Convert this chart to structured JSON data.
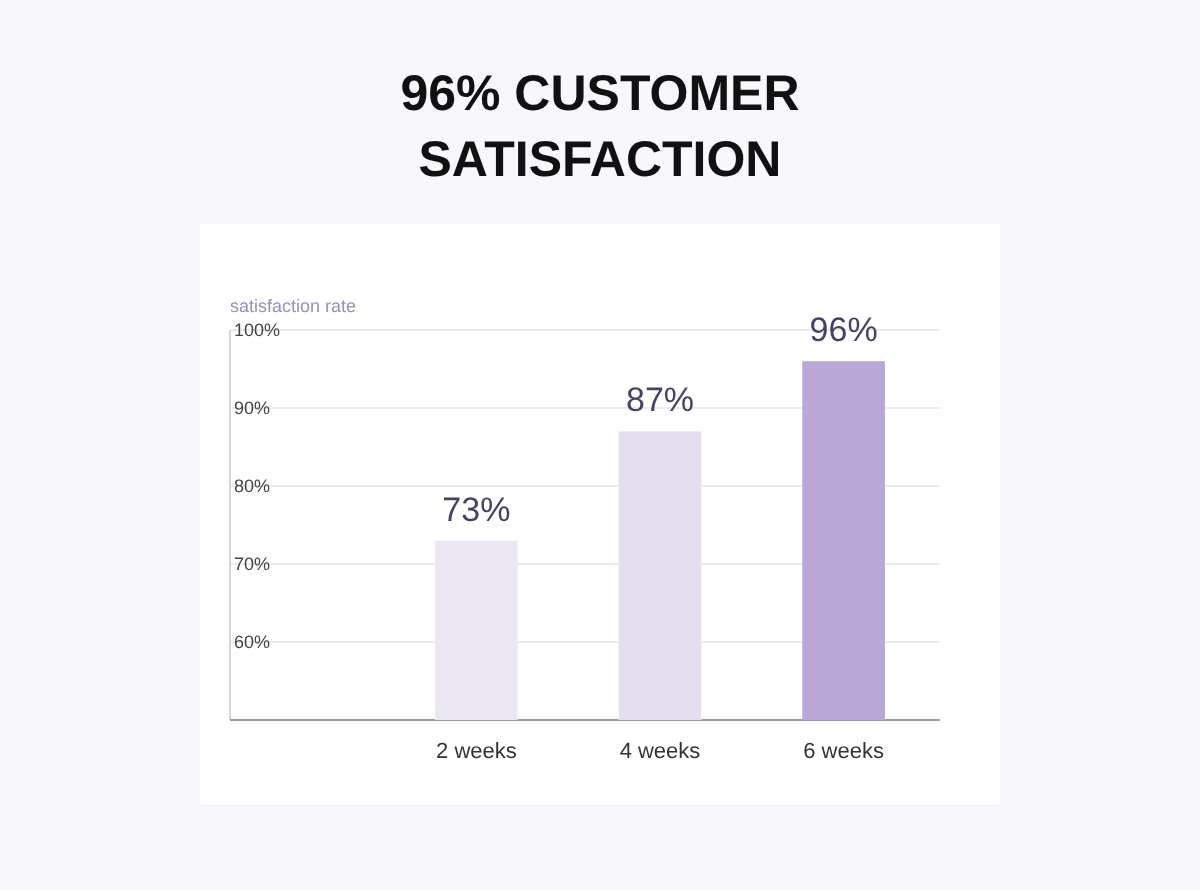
{
  "chart_data": {
    "type": "bar",
    "title": "96% CUSTOMER SATISFACTION",
    "ylabel": "satisfaction rate",
    "categories": [
      "2 weeks",
      "4 weeks",
      "6 weeks"
    ],
    "values": [
      73,
      87,
      96
    ],
    "colors": [
      "#ebe7f3",
      "#e4deef",
      "#bba6d8"
    ],
    "ylim": [
      50,
      100
    ],
    "yticks": [
      {
        "value": 60,
        "label": "60%"
      },
      {
        "value": 70,
        "label": "70%"
      },
      {
        "value": 80,
        "label": "80%"
      },
      {
        "value": 90,
        "label": "90%"
      },
      {
        "value": 100,
        "label": "100%"
      }
    ],
    "grid": "y",
    "data_labels": true,
    "value_labels": [
      "73%",
      "87%",
      "96%"
    ]
  }
}
